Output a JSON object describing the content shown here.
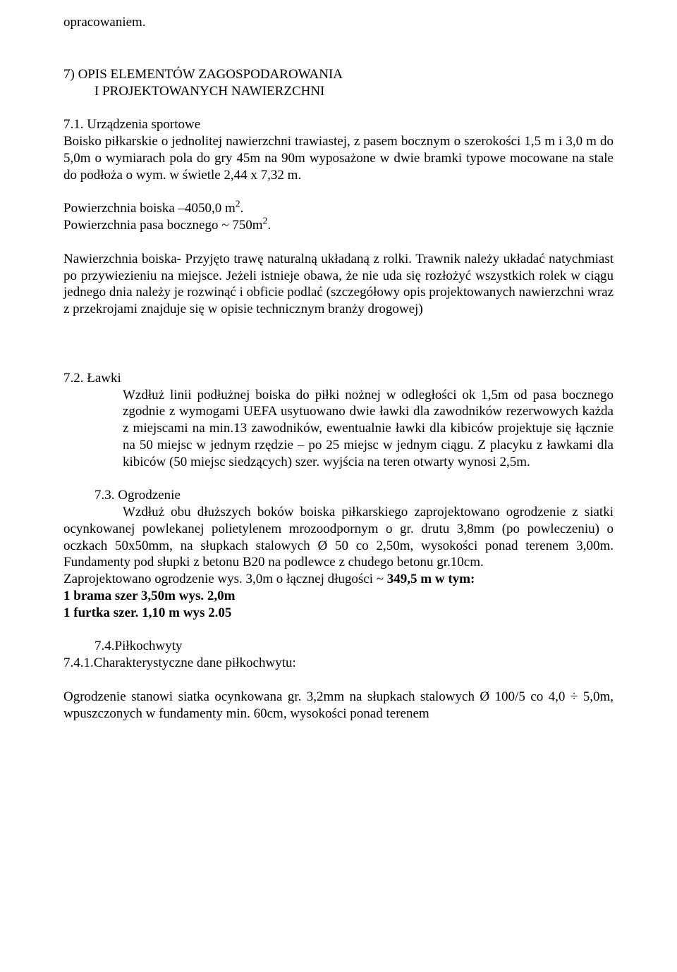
{
  "colors": {
    "text": "#000000",
    "background": "#ffffff"
  },
  "fonts": {
    "body_family": "Times New Roman",
    "body_size_pt": 14
  },
  "top_fragment": "opracowaniem.",
  "h7": {
    "line1": "7) OPIS ELEMENTÓW ZAGOSPODAROWANIA",
    "line2": "I PROJEKTOWANYCH NAWIERZCHNI"
  },
  "s71": {
    "title": "7.1. Urządzenia sportowe",
    "p1": "Boisko piłkarskie o jednolitej nawierzchni trawiastej, z pasem bocznym o szerokości 1,5 m i 3,0 m do 5,0m o wymiarach pola do gry 45m na 90m wyposażone w dwie bramki typowe mocowane na stale do podłoża o wym. w świetle 2,44 x 7,32 m.",
    "area_label": "Powierzchnia boiska –4050,0 m",
    "area_exp": "2",
    "area_end": ".",
    "strip_label": "Powierzchnia pasa bocznego ~ 750m",
    "strip_exp": "2",
    "strip_end": ".",
    "p2": "Nawierzchnia boiska- Przyjęto trawę naturalną układaną z rolki. Trawnik należy układać natychmiast po przywiezieniu na miejsce. Jeżeli istnieje obawa, że nie uda się rozłożyć wszystkich rolek w ciągu jednego dnia należy je rozwinąć i obficie podlać (szczegółowy opis projektowanych nawierzchni wraz z przekrojami znajduje się w opisie technicznym branży drogowej)"
  },
  "s72": {
    "title": "7.2. Ławki",
    "body": "Wzdłuż linii podłużnej boiska do piłki nożnej w odległości ok 1,5m od pasa bocznego zgodnie z wymogami UEFA usytuowano dwie ławki dla zawodników rezerwowych każda z miejscami na min.13 zawodników, ewentualnie ławki dla kibiców projektuje się łącznie na 50 miejsc w jednym rzędzie – po 25 miejsc w jednym ciągu. Z placyku z ławkami dla kibiców (50 miejsc siedzących) szer. wyjścia na teren otwarty wynosi 2,5m."
  },
  "s73": {
    "title": "7.3. Ogrodzenie",
    "p1": "Wzdłuż obu dłuższych boków boiska piłkarskiego zaprojektowano ogrodzenie z siatki ocynkowanej powlekanej polietylenem mrozoodpornym o gr. drutu 3,8mm (po powleczeniu) o oczkach 50x50mm, na słupkach stalowych Ø 50 co 2,50m, wysokości ponad terenem 3,00m. Fundamenty pod słupki z betonu B20 na podlewce z chudego betonu gr.10cm.",
    "p2a": "Zaprojektowano ogrodzenie wys. 3,0m o łącznej długości ~ ",
    "p2b": "349,5 m w tym:",
    "b1": "1 brama szer 3,50m wys. 2,0m",
    "b2": "1 furtka szer. 1,10 m wys 2.05"
  },
  "s74": {
    "title": "7.4.Piłkochwyty",
    "sub": "7.4.1.Charakterystyczne dane piłkochwytu:",
    "body": "Ogrodzenie stanowi siatka ocynkowana gr. 3,2mm na słupkach stalowych Ø 100/5 co 4,0 ÷ 5,0m, wpuszczonych w fundamenty min. 60cm, wysokości ponad terenem"
  }
}
